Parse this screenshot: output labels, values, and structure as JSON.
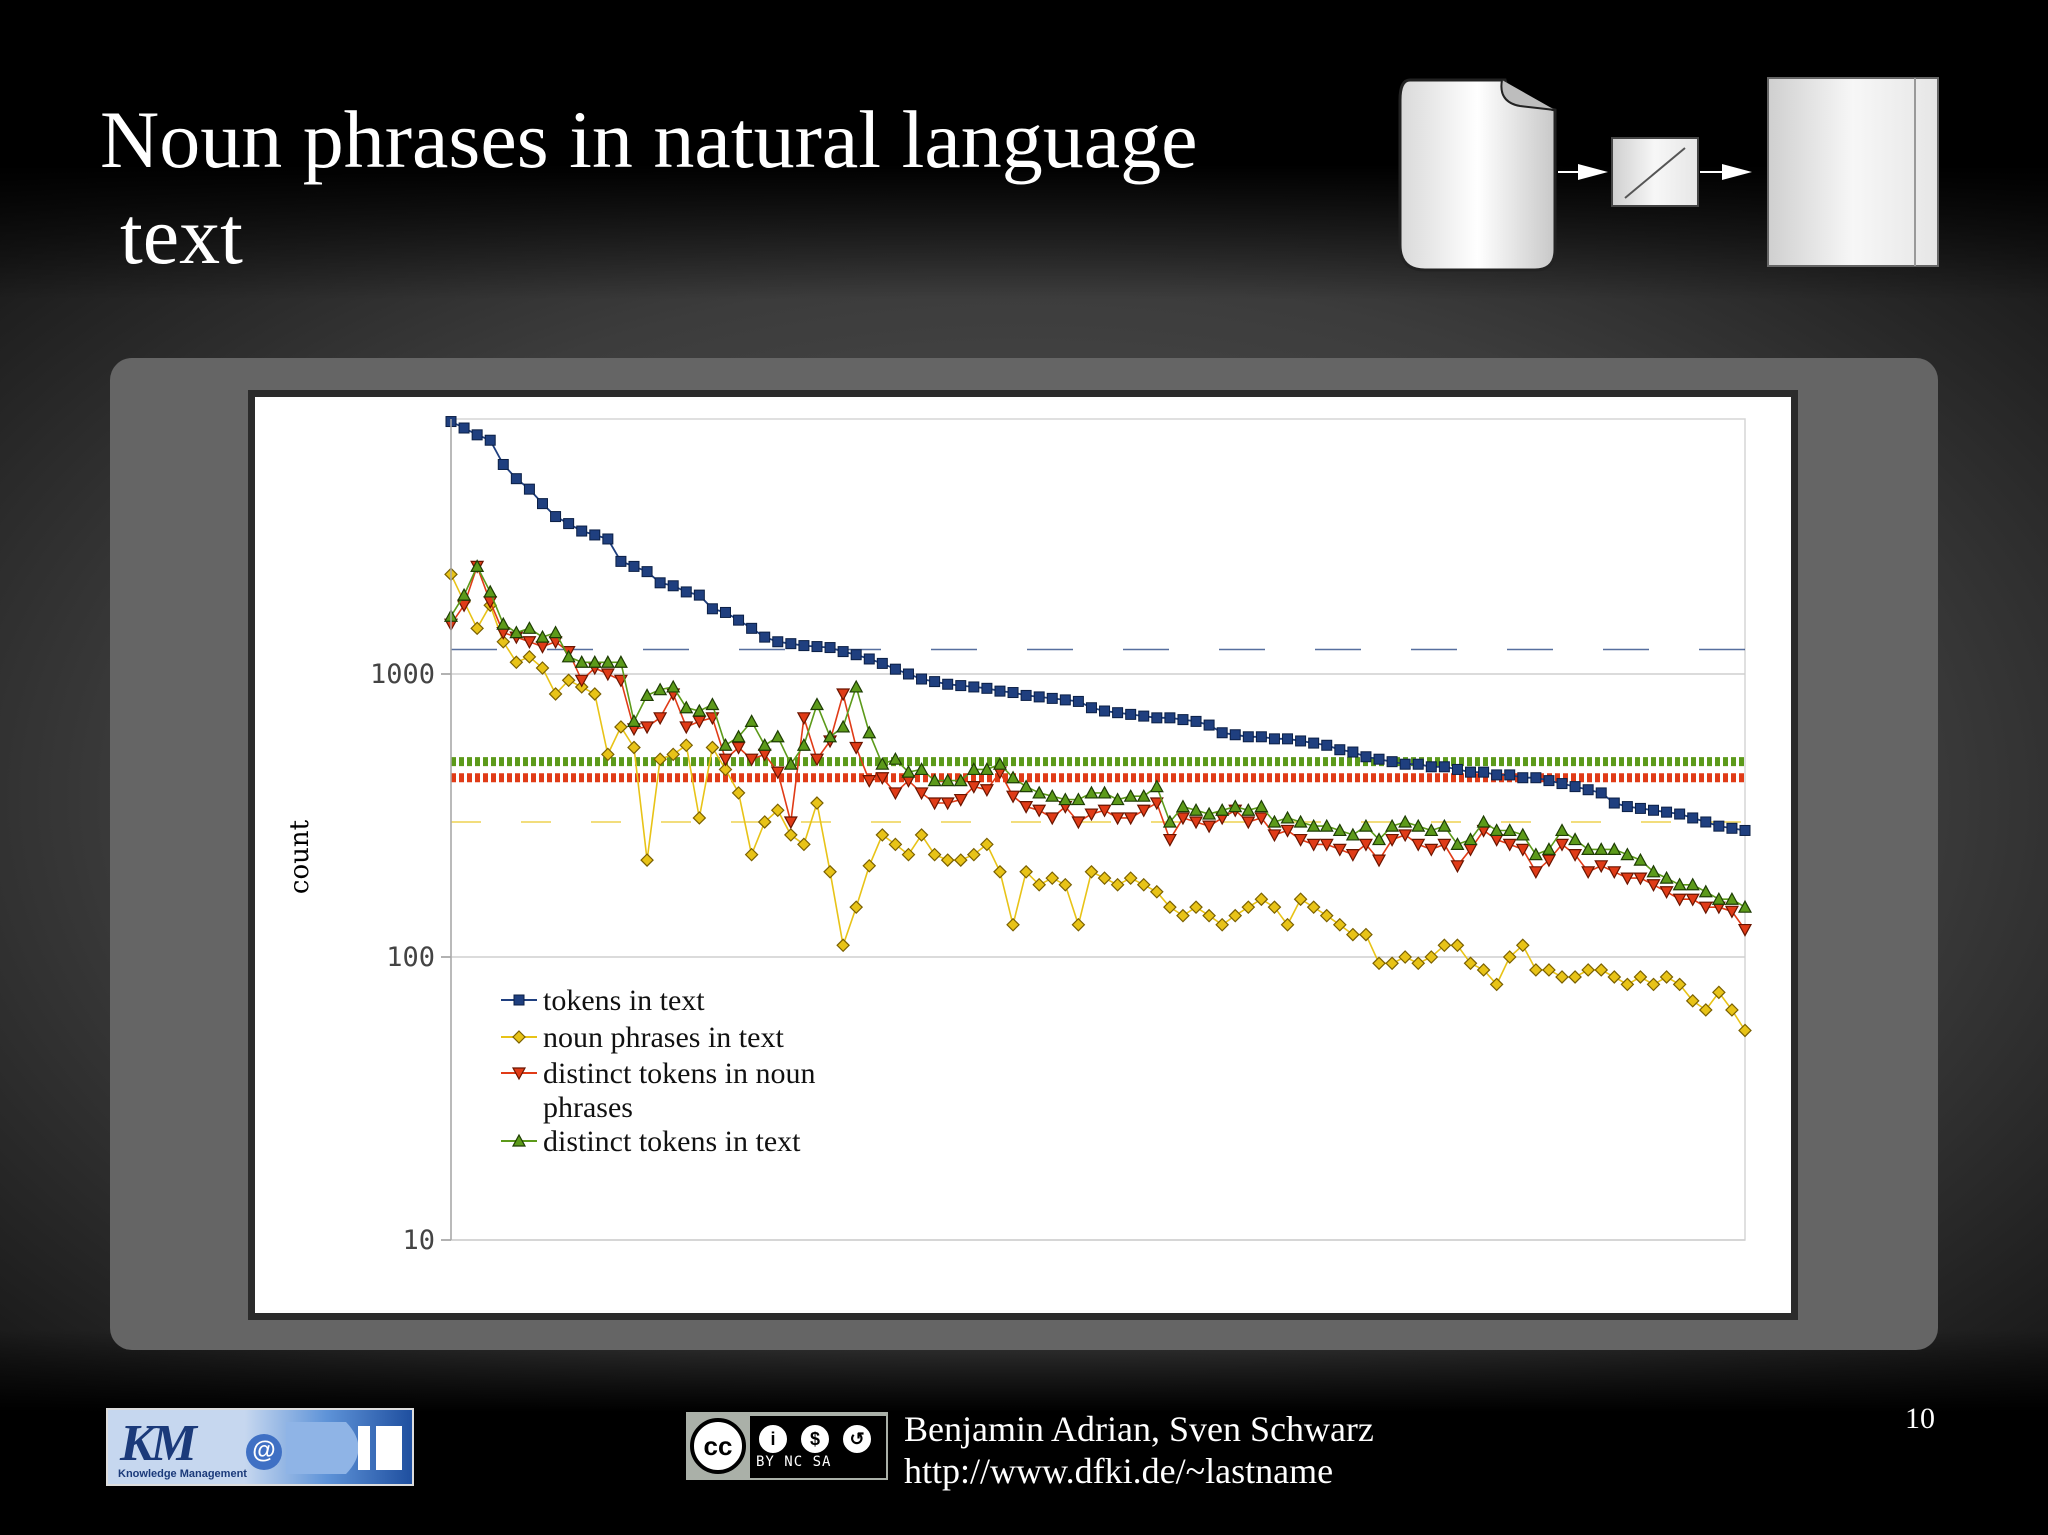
{
  "slide": {
    "title_line1": "Noun phrases in natural language",
    "title_line2": "text",
    "page_number": "10"
  },
  "footer": {
    "authors": "Benjamin Adrian, Sven Schwarz",
    "url": "http://www.dfki.de/~lastname",
    "cc_labels": "BY NC SA",
    "cc_main": "cc",
    "logo_text": "KM",
    "logo_at": "@",
    "logo_subtitle": "Knowledge Management"
  },
  "chart_data": {
    "type": "line",
    "ylabel": "count",
    "yscale": "log",
    "ylim": [
      10,
      10000
    ],
    "yticks": [
      10,
      100,
      1000
    ],
    "ytick_labels": [
      "10",
      "100",
      "1000"
    ],
    "n_points": 100,
    "grid": true,
    "legend_position": "bottom-left",
    "colors": {
      "tokens": "#1f3f7f",
      "noun_phrases": "#e8c317",
      "distinct_np": "#e03b17",
      "distinct_text": "#5c9a1a"
    },
    "series": [
      {
        "name": "tokens in text",
        "color": "#1f3f7f",
        "marker": "square",
        "average": 1220,
        "values": [
          7800,
          7400,
          7000,
          6700,
          5500,
          4900,
          4500,
          4000,
          3600,
          3400,
          3200,
          3100,
          3000,
          2500,
          2400,
          2300,
          2100,
          2050,
          1950,
          1900,
          1700,
          1650,
          1550,
          1450,
          1350,
          1300,
          1280,
          1260,
          1250,
          1240,
          1200,
          1170,
          1130,
          1090,
          1040,
          1000,
          960,
          940,
          920,
          910,
          900,
          890,
          870,
          860,
          840,
          830,
          820,
          810,
          800,
          760,
          740,
          730,
          720,
          710,
          700,
          700,
          690,
          680,
          660,
          620,
          610,
          600,
          600,
          590,
          590,
          580,
          570,
          560,
          540,
          530,
          510,
          500,
          490,
          480,
          480,
          470,
          470,
          460,
          450,
          450,
          440,
          440,
          430,
          430,
          420,
          410,
          400,
          390,
          380,
          350,
          340,
          335,
          330,
          325,
          320,
          310,
          300,
          290,
          285,
          280
        ]
      },
      {
        "name": "noun phrases in text",
        "color": "#e8c317",
        "marker": "diamond",
        "average": 300,
        "values": [
          2250,
          1800,
          1450,
          1750,
          1300,
          1100,
          1150,
          1050,
          850,
          950,
          900,
          850,
          520,
          650,
          550,
          220,
          500,
          520,
          560,
          310,
          550,
          460,
          380,
          230,
          300,
          330,
          270,
          250,
          350,
          200,
          110,
          150,
          210,
          270,
          250,
          230,
          270,
          230,
          220,
          220,
          230,
          250,
          200,
          130,
          200,
          180,
          190,
          180,
          130,
          200,
          190,
          180,
          190,
          180,
          170,
          150,
          140,
          150,
          140,
          130,
          140,
          150,
          160,
          150,
          130,
          160,
          150,
          140,
          130,
          120,
          120,
          95,
          95,
          100,
          95,
          100,
          110,
          110,
          95,
          90,
          80,
          100,
          110,
          90,
          90,
          85,
          85,
          90,
          90,
          85,
          80,
          85,
          80,
          85,
          80,
          70,
          65,
          75,
          65,
          55
        ]
      },
      {
        "name": "distinct tokens in noun phrases",
        "color": "#e03b17",
        "marker": "triangle-down",
        "average": 430,
        "values": [
          1500,
          1750,
          2400,
          1800,
          1400,
          1350,
          1300,
          1250,
          1300,
          1200,
          950,
          1050,
          1000,
          950,
          640,
          650,
          700,
          850,
          650,
          680,
          700,
          500,
          550,
          500,
          520,
          450,
          300,
          700,
          500,
          580,
          850,
          550,
          420,
          430,
          380,
          420,
          380,
          350,
          350,
          360,
          400,
          390,
          450,
          370,
          340,
          330,
          310,
          340,
          300,
          320,
          330,
          310,
          310,
          330,
          350,
          260,
          310,
          300,
          290,
          310,
          330,
          300,
          310,
          270,
          280,
          260,
          250,
          250,
          240,
          230,
          250,
          220,
          260,
          270,
          250,
          240,
          250,
          210,
          240,
          280,
          260,
          250,
          240,
          200,
          220,
          250,
          230,
          200,
          210,
          200,
          190,
          190,
          180,
          170,
          160,
          160,
          150,
          150,
          145,
          125
        ]
      },
      {
        "name": "distinct tokens in text",
        "color": "#5c9a1a",
        "marker": "triangle-up",
        "average": 490,
        "values": [
          1600,
          1900,
          2400,
          1950,
          1500,
          1400,
          1450,
          1350,
          1400,
          1150,
          1100,
          1100,
          1100,
          1100,
          680,
          840,
          880,
          900,
          760,
          740,
          780,
          560,
          600,
          680,
          560,
          600,
          480,
          560,
          780,
          600,
          650,
          900,
          620,
          480,
          500,
          450,
          460,
          420,
          420,
          420,
          460,
          460,
          480,
          430,
          400,
          380,
          370,
          360,
          360,
          380,
          380,
          360,
          370,
          370,
          400,
          300,
          340,
          330,
          320,
          330,
          340,
          330,
          340,
          300,
          310,
          300,
          290,
          290,
          280,
          270,
          290,
          260,
          290,
          300,
          290,
          280,
          290,
          250,
          260,
          300,
          280,
          280,
          270,
          230,
          240,
          280,
          260,
          240,
          240,
          240,
          230,
          220,
          200,
          190,
          180,
          180,
          170,
          160,
          160,
          150
        ]
      }
    ]
  }
}
